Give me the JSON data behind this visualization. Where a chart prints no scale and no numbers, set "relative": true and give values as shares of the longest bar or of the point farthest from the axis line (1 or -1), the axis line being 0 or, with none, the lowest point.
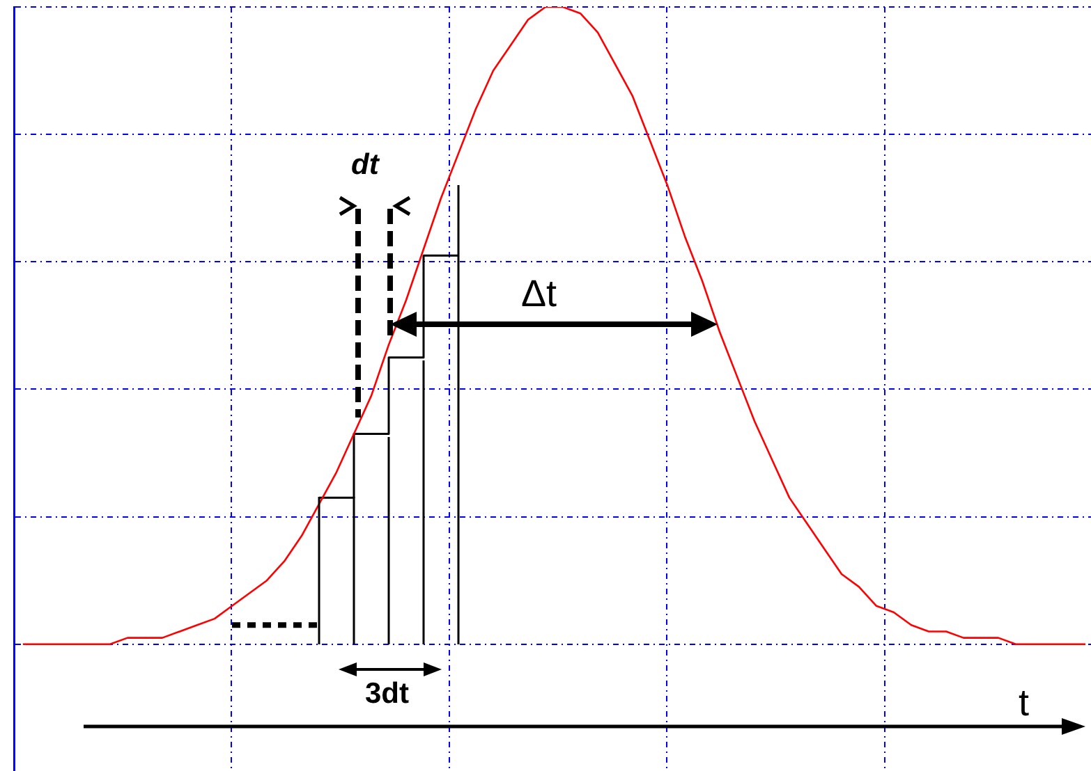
{
  "chart_data": {
    "type": "line",
    "relative": true,
    "grid": true,
    "xlabel": "t",
    "annotations": [
      "dt",
      "Δt",
      "3dt"
    ],
    "categories": [
      null,
      null,
      null,
      null,
      null,
      null,
      null,
      null,
      null,
      null,
      null,
      null,
      null,
      null,
      null,
      null,
      null,
      null,
      null,
      null,
      null,
      null,
      null,
      null,
      null,
      null,
      null,
      null,
      null,
      null,
      null,
      null,
      null,
      null,
      null,
      null,
      null,
      null,
      null,
      null,
      null,
      null,
      null,
      null,
      null,
      null,
      null,
      null,
      null,
      null,
      null,
      null,
      null,
      null,
      null,
      null,
      null,
      null,
      null,
      null,
      null,
      null
    ],
    "series": [
      {
        "color": "#ff0000",
        "values": [
          0,
          0,
          0,
          0,
          0,
          0,
          0.01,
          0.01,
          0.01,
          0.02,
          0.03,
          0.04,
          0.06,
          0.08,
          0.1,
          0.13,
          0.17,
          0.22,
          0.27,
          0.33,
          0.39,
          0.47,
          0.54,
          0.62,
          0.7,
          0.77,
          0.84,
          0.9,
          0.94,
          0.98,
          1,
          1,
          0.99,
          0.96,
          0.91,
          0.86,
          0.79,
          0.72,
          0.64,
          0.57,
          0.49,
          0.42,
          0.35,
          0.29,
          0.23,
          0.19,
          0.15,
          0.11,
          0.09,
          0.06,
          0.05,
          0.03,
          0.02,
          0.02,
          0.01,
          0.01,
          0.01,
          0,
          0,
          0,
          0,
          0
        ]
      },
      {
        "type": "line",
        "line_style": "dotted",
        "color": "#000000",
        "values": [
          null,
          null,
          null,
          null,
          null,
          null,
          null,
          null,
          null,
          null,
          null,
          null,
          0.03,
          0.03,
          0.03,
          0.03,
          0.03,
          0.03,
          null,
          null,
          null,
          null,
          null,
          null,
          null,
          null,
          null,
          null,
          null,
          null,
          null,
          null,
          null,
          null,
          null,
          null,
          null,
          null,
          null,
          null,
          null,
          null,
          null,
          null,
          null,
          null,
          null,
          null,
          null,
          null,
          null,
          null,
          null,
          null,
          null,
          null,
          null,
          null,
          null,
          null,
          null,
          null
        ]
      },
      {
        "type": "step",
        "color": "#000000",
        "values": [
          null,
          null,
          null,
          null,
          null,
          null,
          null,
          null,
          null,
          null,
          null,
          null,
          null,
          null,
          null,
          null,
          null,
          0.23,
          0.23,
          0.33,
          0.33,
          0.45,
          0.45,
          0.61,
          0.61,
          0.61,
          null,
          null,
          null,
          null,
          null,
          null,
          null,
          null,
          null,
          null,
          null,
          null,
          null,
          null,
          null,
          null,
          null,
          null,
          null,
          null,
          null,
          null,
          null,
          null,
          null,
          null,
          null,
          null,
          null,
          null,
          null,
          null,
          null,
          null,
          null,
          null
        ]
      }
    ]
  }
}
